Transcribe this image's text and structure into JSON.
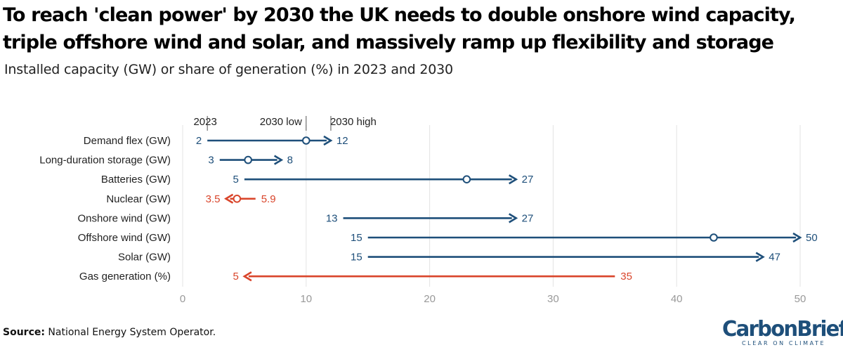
{
  "title_line1": "To reach 'clean power' by 2030 the UK needs to double onshore wind capacity,",
  "title_line2": "triple offshore wind and solar, and massively ramp up flexibility and storage",
  "subtitle": "Installed capacity (GW) or share of generation (%) in 2023 and 2030",
  "source_label": "Source:",
  "source_text": " National Energy System Operator.",
  "logo": {
    "name": "CarbonBrief",
    "tagline": "CLEAR ON CLIMATE"
  },
  "colors": {
    "increase": "#1e4f7a",
    "decrease": "#d9452b",
    "grid": "#e3e3e3",
    "tick": "#999999"
  },
  "chart_data": {
    "type": "dumbbell",
    "legend": [
      "2023",
      "2030 low",
      "2030 high"
    ],
    "xlim": [
      0,
      50
    ],
    "xticks": [
      0,
      10,
      20,
      30,
      40,
      50
    ],
    "grid": true,
    "rows": [
      {
        "label": "Demand flex (GW)",
        "v2023": 2,
        "v2030_low": 10,
        "v2030_high": 12,
        "label_2023": "2",
        "label_2030": "12",
        "direction": "up"
      },
      {
        "label": "Long-duration storage (GW)",
        "v2023": 3,
        "v2030_low": 5.3,
        "v2030_high": 8,
        "label_2023": "3",
        "label_2030": "8",
        "direction": "up"
      },
      {
        "label": "Batteries (GW)",
        "v2023": 5,
        "v2030_low": 23,
        "v2030_high": 27,
        "label_2023": "5",
        "label_2030": "27",
        "direction": "up"
      },
      {
        "label": "Nuclear (GW)",
        "v2023": 5.9,
        "v2030_low": 4.4,
        "v2030_high": 3.5,
        "label_2023": "5.9",
        "label_2030": "3.5",
        "direction": "down"
      },
      {
        "label": "Onshore wind (GW)",
        "v2023": 13,
        "v2030_low": null,
        "v2030_high": 27,
        "label_2023": "13",
        "label_2030": "27",
        "direction": "up"
      },
      {
        "label": "Offshore wind (GW)",
        "v2023": 15,
        "v2030_low": 43,
        "v2030_high": 50,
        "label_2023": "15",
        "label_2030": "50",
        "direction": "up"
      },
      {
        "label": "Solar (GW)",
        "v2023": 15,
        "v2030_low": null,
        "v2030_high": 47,
        "label_2023": "15",
        "label_2030": "47",
        "direction": "up"
      },
      {
        "label": "Gas generation (%)",
        "v2023": 35,
        "v2030_low": null,
        "v2030_high": 5,
        "label_2023": "35",
        "label_2030": "5",
        "direction": "down"
      }
    ]
  }
}
